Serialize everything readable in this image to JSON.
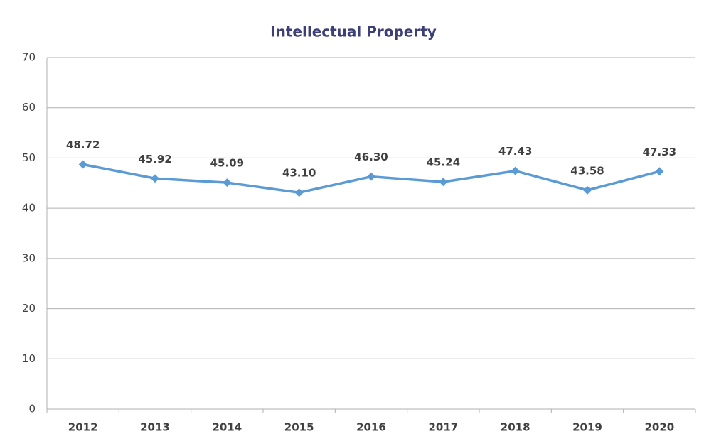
{
  "chart_data": {
    "type": "line",
    "title": "Intellectual Property",
    "categories": [
      "2012",
      "2013",
      "2014",
      "2015",
      "2016",
      "2017",
      "2018",
      "2019",
      "2020"
    ],
    "series": [
      {
        "name": "Intellectual Property",
        "color": "#5b9bd5",
        "values": [
          48.72,
          45.92,
          45.09,
          43.1,
          46.3,
          45.24,
          47.43,
          43.58,
          47.33
        ],
        "value_labels": [
          "48.72",
          "45.92",
          "45.09",
          "43.10",
          "46.30",
          "45.24",
          "47.43",
          "43.58",
          "47.33"
        ]
      }
    ],
    "ylim": [
      0,
      70
    ],
    "yticks": [
      0,
      10,
      20,
      30,
      40,
      50,
      60,
      70
    ],
    "grid": true
  }
}
